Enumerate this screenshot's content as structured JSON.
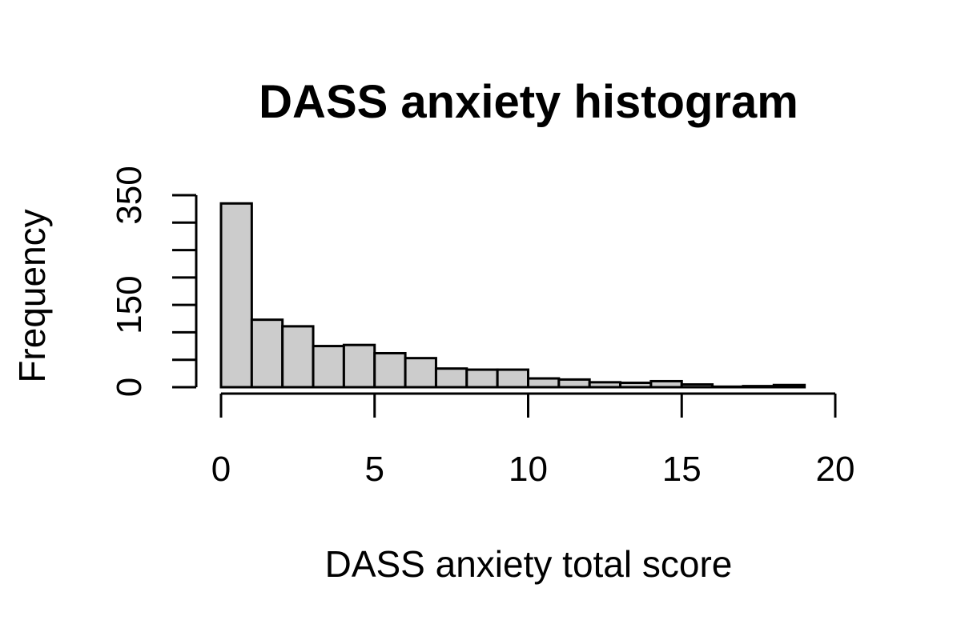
{
  "chart_data": {
    "type": "bar",
    "title": "DASS anxiety histogram",
    "xlabel": "DASS anxiety total score",
    "ylabel": "Frequency",
    "bin_edges": [
      0,
      1,
      2,
      3,
      4,
      5,
      6,
      7,
      8,
      9,
      10,
      11,
      12,
      13,
      14,
      15,
      16,
      17,
      18,
      19
    ],
    "values": [
      335,
      123,
      111,
      75,
      77,
      62,
      53,
      34,
      32,
      32,
      16,
      14,
      9,
      8,
      11,
      5,
      1,
      2,
      4
    ],
    "xlim": [
      0,
      20
    ],
    "ylim": [
      0,
      350
    ],
    "x_ticks": [
      0,
      5,
      10,
      15,
      20
    ],
    "y_ticks": [
      0,
      150,
      350
    ],
    "y_minor_ticks": [
      0,
      50,
      100,
      150,
      200,
      250,
      300,
      350
    ],
    "bar_fill": "#cccccc",
    "bar_stroke": "#000000",
    "grid": false,
    "legend": "none"
  }
}
